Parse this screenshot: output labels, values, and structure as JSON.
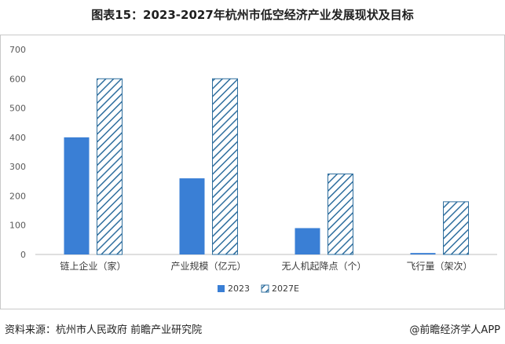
{
  "page": {
    "title": "图表15：2023-2027年杭州市低空经济产业发展现状及目标",
    "source": "资料来源：杭州市人民政府 前瞻产业研究院",
    "credit": "@前瞻经济学人APP"
  },
  "colors": {
    "series_2023": "#3a7fd5",
    "series_2027E_stroke": "#2e6e9e",
    "axis": "#bfbfbf"
  },
  "chart_data": {
    "type": "bar",
    "categories": [
      "链上企业（家）",
      "产业规模（亿元）",
      "无人机起降点（个）",
      "飞行量（架次）"
    ],
    "series": [
      {
        "name": "2023",
        "values": [
          400,
          260,
          90,
          5
        ],
        "pattern": "solid"
      },
      {
        "name": "2027E",
        "values": [
          600,
          600,
          275,
          180
        ],
        "pattern": "hatched"
      }
    ],
    "ylim": [
      0,
      700
    ],
    "yticks": [
      "0",
      "100",
      "200",
      "300",
      "400",
      "500",
      "600",
      "700"
    ],
    "grid": false,
    "legend": "bottom"
  }
}
